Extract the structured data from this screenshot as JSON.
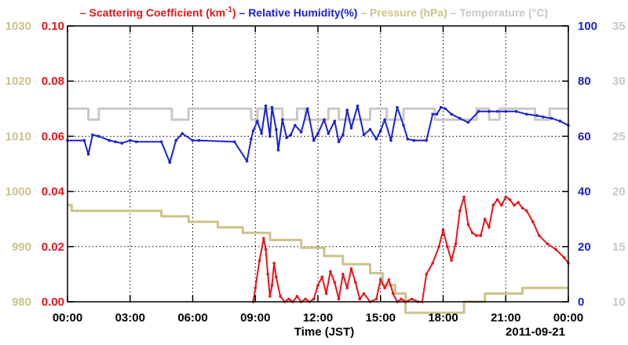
{
  "chart_data": {
    "type": "line",
    "legend": {
      "placement": "top",
      "items": [
        {
          "key": "scattering",
          "dash": "–",
          "label": "Scattering Coefficient (km",
          "sup": "-1",
          "after": ")",
          "color": "#e4161b"
        },
        {
          "key": "humidity",
          "dash": "–",
          "label": "Relative Humidity(%)",
          "color": "#1b22d0"
        },
        {
          "key": "pressure",
          "dash": "–",
          "label": "Pressure (hPa)",
          "color": "#cbc38a"
        },
        {
          "key": "temperature",
          "dash": "–",
          "label": "Temperature (°C)",
          "color": "#c8c8c8"
        }
      ]
    },
    "xlabel": "Time (JST)",
    "date_label": "2011-09-21",
    "x_ticks": [
      "00:00",
      "03:00",
      "06:00",
      "09:00",
      "12:00",
      "15:00",
      "18:00",
      "21:00",
      "00:00"
    ],
    "xlim": [
      0,
      24
    ],
    "grid": true,
    "axes": {
      "pressure": {
        "ticks": [
          "1030",
          "1020",
          "1010",
          "1000",
          "990",
          "980"
        ],
        "ylim": [
          980,
          1030
        ],
        "color": "#cbc38a",
        "side": "left-outer"
      },
      "scattering": {
        "ticks": [
          "0.10",
          "0.08",
          "0.06",
          "0.04",
          "0.02",
          "0.00"
        ],
        "ylim": [
          0,
          0.1
        ],
        "color": "#e4161b",
        "side": "left-inner"
      },
      "humidity": {
        "ticks": [
          "100",
          "80",
          "60",
          "40",
          "20",
          "0"
        ],
        "ylim": [
          0,
          100
        ],
        "color": "#1b22d0",
        "side": "right-inner"
      },
      "temperature": {
        "ticks": [
          "35",
          "30",
          "25",
          "20",
          "15",
          "10"
        ],
        "ylim": [
          10,
          35
        ],
        "color": "#c8c8c8",
        "side": "right-outer"
      }
    },
    "series": [
      {
        "name": "Temperature",
        "axis": "temperature",
        "color": "#c8c8c8",
        "step": true,
        "x": [
          0,
          1.0,
          1.0,
          1.5,
          1.5,
          5.0,
          5.0,
          5.8,
          5.8,
          8.8,
          8.8,
          9.1,
          9.1,
          10.3,
          10.3,
          11.0,
          11.0,
          11.4,
          11.4,
          12.5,
          12.5,
          13.0,
          13.0,
          14.5,
          14.5,
          15.3,
          15.3,
          16.1,
          16.1,
          17.6,
          17.6,
          19.6,
          19.6,
          20.2,
          20.2,
          20.7,
          20.7,
          22.4,
          22.4,
          23.1,
          23.1,
          24
        ],
        "y": [
          27.5,
          27.5,
          26.5,
          26.5,
          27.5,
          27.5,
          26.5,
          26.5,
          27.5,
          27.5,
          26.5,
          26.5,
          27.5,
          27.5,
          26.5,
          26.5,
          27.5,
          27.5,
          26.5,
          26.5,
          27.5,
          27.5,
          26.5,
          26.5,
          27.5,
          27.5,
          26.5,
          26.5,
          27.5,
          27.5,
          26.5,
          26.5,
          27.5,
          27.5,
          26.5,
          26.5,
          27.5,
          27.5,
          26.5,
          26.5,
          27.5,
          27.5
        ]
      },
      {
        "name": "Pressure",
        "axis": "pressure",
        "color": "#cbc38a",
        "step": true,
        "x": [
          0,
          0.2,
          0.2,
          4.5,
          4.5,
          5.8,
          5.8,
          7.2,
          7.2,
          8.4,
          8.4,
          9.7,
          9.7,
          11.2,
          11.2,
          12.3,
          12.3,
          13.2,
          13.2,
          14.5,
          14.5,
          15.1,
          15.1,
          15.7,
          15.7,
          16.2,
          16.2,
          19.0,
          19.0,
          20.0,
          20.0,
          21.8,
          21.8,
          24
        ],
        "y": [
          997.5,
          997.5,
          996.5,
          996.5,
          995.5,
          995.5,
          994.5,
          994.5,
          993.5,
          993.5,
          992.5,
          992.5,
          991.2,
          991.2,
          989.8,
          989.8,
          988.3,
          988.3,
          986.8,
          986.8,
          985.2,
          985.2,
          983.0,
          983.0,
          981.5,
          981.5,
          978.0,
          978.0,
          980.0,
          980.0,
          981.5,
          981.5,
          982.5,
          982.5
        ]
      },
      {
        "name": "Relative Humidity",
        "axis": "humidity",
        "color": "#1b22d0",
        "step": false,
        "markers": true,
        "x": [
          0,
          0.8,
          1.0,
          1.2,
          1.5,
          2.0,
          2.3,
          2.6,
          3.0,
          3.3,
          4.5,
          4.9,
          5.2,
          5.5,
          6.0,
          6.3,
          8.0,
          8.6,
          8.8,
          8.9,
          9.1,
          9.3,
          9.5,
          9.7,
          9.8,
          10.0,
          10.1,
          10.3,
          10.5,
          10.7,
          10.9,
          11.2,
          11.5,
          11.8,
          12.0,
          12.3,
          12.5,
          12.8,
          13.0,
          13.2,
          13.4,
          13.6,
          13.9,
          14.2,
          14.5,
          14.8,
          15.0,
          15.2,
          15.5,
          15.8,
          16.1,
          16.3,
          16.6,
          17.2,
          17.5,
          17.7,
          17.9,
          18.1,
          18.4,
          18.8,
          19.2,
          19.7,
          20.2,
          20.6,
          21.0,
          21.5,
          22.0,
          22.5,
          22.8,
          23.2,
          23.6,
          24
        ],
        "y": [
          58.5,
          58.5,
          53.5,
          60.5,
          60.0,
          58.5,
          58.0,
          57.5,
          58.5,
          58.0,
          58.0,
          50.5,
          58.5,
          61.0,
          58.5,
          58.5,
          58.0,
          51.0,
          59.0,
          62.0,
          65.5,
          61.0,
          71.0,
          60.0,
          70.5,
          62.5,
          55.0,
          66.0,
          59.5,
          60.5,
          64.0,
          61.5,
          70.0,
          58.5,
          61.0,
          66.0,
          61.0,
          65.5,
          58.0,
          60.5,
          69.5,
          63.0,
          71.0,
          60.5,
          62.5,
          59.0,
          62.0,
          66.0,
          58.5,
          70.5,
          64.0,
          59.0,
          58.5,
          58.5,
          68.0,
          68.0,
          70.5,
          70.0,
          68.0,
          66.5,
          65.0,
          69.0,
          69.0,
          69.0,
          69.0,
          69.0,
          68.0,
          67.5,
          67.0,
          66.5,
          65.5,
          64.0
        ]
      },
      {
        "name": "Scattering Coefficient",
        "axis": "scattering",
        "color": "#e4161b",
        "step": false,
        "markers": true,
        "x": [
          8.9,
          9.0,
          9.2,
          9.4,
          9.5,
          9.6,
          9.7,
          9.8,
          9.9,
          10.0,
          10.2,
          10.4,
          10.6,
          10.8,
          11.0,
          11.2,
          11.4,
          11.6,
          11.8,
          12.0,
          12.2,
          12.4,
          12.6,
          12.8,
          13.0,
          13.2,
          13.4,
          13.6,
          13.8,
          14.0,
          14.2,
          14.5,
          14.8,
          15.0,
          15.2,
          15.4,
          15.6,
          15.8,
          16.0,
          16.2,
          16.5,
          16.8,
          17.0,
          17.2,
          17.5,
          17.8,
          18.0,
          18.2,
          18.4,
          18.6,
          18.8,
          19.0,
          19.2,
          19.4,
          19.6,
          19.8,
          20.0,
          20.2,
          20.4,
          20.6,
          20.8,
          21.0,
          21.2,
          21.4,
          21.6,
          21.8,
          22.0,
          22.3,
          22.6,
          23.0,
          23.4,
          23.8,
          24.0
        ],
        "y": [
          0.0,
          0.005,
          0.015,
          0.023,
          0.019,
          0.01,
          0.002,
          0.006,
          0.014,
          0.009,
          0.002,
          0.0,
          0.001,
          0.0,
          0.002,
          0.0,
          0.001,
          0.0,
          0.001,
          0.006,
          0.009,
          0.003,
          0.011,
          0.007,
          0.001,
          0.01,
          0.005,
          0.012,
          0.007,
          0.001,
          0.003,
          0.0,
          0.001,
          0.008,
          0.005,
          0.008,
          0.003,
          0.0,
          0.001,
          0.0,
          0.001,
          0.0,
          0.0,
          0.01,
          0.014,
          0.02,
          0.026,
          0.02,
          0.015,
          0.021,
          0.033,
          0.038,
          0.028,
          0.025,
          0.024,
          0.024,
          0.03,
          0.027,
          0.035,
          0.037,
          0.035,
          0.038,
          0.037,
          0.035,
          0.036,
          0.034,
          0.033,
          0.029,
          0.024,
          0.021,
          0.019,
          0.016,
          0.014
        ]
      }
    ]
  }
}
